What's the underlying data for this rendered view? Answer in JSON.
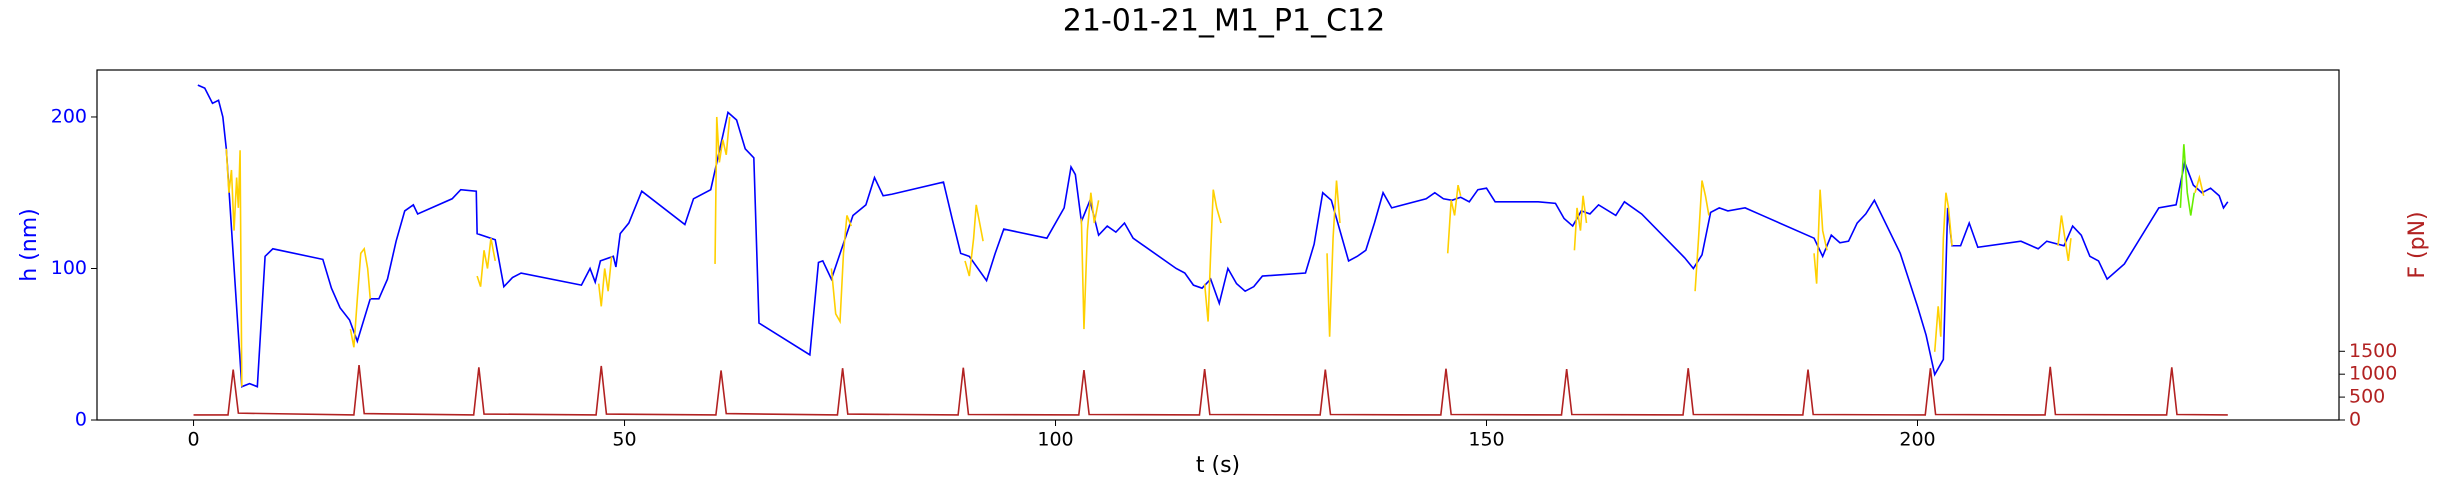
{
  "chart_data": {
    "type": "line",
    "title": "21-01-21_M1_P1_C12",
    "x_label": "t (s)",
    "y_label": "h (nm)",
    "y2_label": "F (pN)",
    "xlim": [
      -11.2,
      248.9
    ],
    "xticks": [
      0,
      50,
      100,
      150,
      200
    ],
    "ylim": [
      0,
      231
    ],
    "yticks": [
      0,
      100,
      200
    ],
    "y2lim": [
      0,
      7640
    ],
    "y2ticks": [
      0,
      500,
      1000,
      1500
    ],
    "series": [
      {
        "color": "#0000ff",
        "axis": "y",
        "x": [
          0.5,
          1.3,
          2.2,
          2.9,
          3.4,
          3.8,
          5.6,
          6.5,
          7.4,
          8.3,
          9.2,
          15,
          16,
          17,
          18.1,
          19,
          20.5,
          21.5,
          22.5,
          23.5,
          24.5,
          25.5,
          26,
          30,
          31,
          32.8,
          32.9,
          35,
          36,
          37,
          38,
          45,
          46,
          46.6,
          47.2,
          48.7,
          49,
          49.5,
          50.5,
          52,
          57,
          58,
          60,
          62,
          63,
          64,
          65,
          65.6,
          71.5,
          72.5,
          73,
          74,
          76.5,
          78,
          79,
          80,
          81,
          87,
          88,
          89,
          90,
          92,
          93,
          94,
          99,
          101,
          101.8,
          102.3,
          103,
          104,
          105,
          106,
          107,
          108,
          109,
          114,
          115,
          116,
          117,
          118,
          119,
          120,
          121,
          122,
          123,
          124,
          129,
          130,
          131,
          132,
          133,
          134,
          135,
          136,
          137,
          138,
          139,
          143,
          144,
          145,
          146,
          147,
          148,
          149,
          150,
          151,
          156,
          158,
          159,
          160,
          161,
          162,
          163,
          165,
          166,
          168,
          173,
          174,
          175,
          176,
          177,
          178,
          180,
          182,
          188,
          189,
          190,
          191,
          192,
          193,
          194,
          195,
          198,
          200,
          201,
          202,
          203,
          203.5,
          204,
          205,
          206,
          207,
          212,
          214,
          215,
          217,
          218,
          219,
          220,
          221,
          222,
          224,
          228,
          230,
          231,
          232,
          233,
          234,
          235,
          235.5,
          236
        ],
        "values": [
          221,
          219,
          209,
          211,
          200,
          179,
          22,
          24,
          22,
          108,
          113,
          106,
          87,
          74,
          66,
          52,
          80,
          80,
          93,
          118,
          138,
          142,
          136,
          146,
          152,
          151,
          123,
          119,
          88,
          94,
          97,
          89,
          100,
          91,
          105,
          108,
          101,
          123,
          130,
          151,
          129,
          146,
          152,
          203,
          198,
          179,
          173,
          64,
          43,
          104,
          105,
          93,
          135,
          142,
          160,
          148,
          149,
          157,
          133,
          110,
          108,
          92,
          110,
          126,
          120,
          140,
          167,
          162,
          131,
          145,
          122,
          128,
          124,
          130,
          120,
          100,
          97,
          89,
          87,
          93,
          77,
          100,
          90,
          85,
          88,
          95,
          97,
          116,
          150,
          145,
          125,
          105,
          108,
          112,
          130,
          150,
          140,
          146,
          150,
          146,
          145,
          147,
          144,
          152,
          153,
          144,
          144,
          143,
          133,
          128,
          138,
          136,
          142,
          135,
          144,
          136,
          107,
          100,
          109,
          137,
          140,
          138,
          140,
          135,
          120,
          108,
          122,
          117,
          118,
          130,
          136,
          145,
          110,
          75,
          56,
          30,
          40,
          140,
          115,
          115,
          130,
          114,
          118,
          113,
          118,
          115,
          128,
          122,
          108,
          105,
          93,
          103,
          140,
          142,
          170,
          155,
          150,
          153,
          148,
          140,
          144
        ]
      },
      {
        "color": "#ffd000",
        "axis": "y",
        "x": [
          3.8,
          4.1,
          4.4,
          4.7,
          5.0,
          5.2,
          5.4,
          5.6,
          6,
          18.2,
          18.6,
          19.0,
          19.4,
          19.8,
          20.2,
          20.5,
          21,
          32.9,
          33.3,
          33.7,
          34.1,
          34.5,
          35,
          36,
          47,
          47.3,
          47.7,
          48.1,
          48.5,
          49,
          60.5,
          60.7,
          61,
          61.4,
          61.8,
          62.2,
          63,
          74,
          74.5,
          75,
          75.4,
          75.8,
          76.3,
          77,
          89.5,
          90,
          90.5,
          90.8,
          91.2,
          91.6,
          92.5,
          103,
          103.3,
          103.7,
          104.1,
          104.5,
          105,
          106,
          117.3,
          117.7,
          118,
          118.3,
          118.7,
          119.2,
          120,
          131.5,
          131.8,
          132.2,
          132.6,
          133,
          134,
          145.5,
          145.9,
          146.3,
          146.7,
          147,
          148,
          160.2,
          160.5,
          160.9,
          161.2,
          161.6,
          162.5,
          174.2,
          174.6,
          175,
          175.4,
          175.8,
          177,
          188,
          188.3,
          188.7,
          189,
          189.5,
          190.5,
          202,
          202.4,
          202.7,
          203,
          203.3,
          203.6,
          204,
          205,
          216.3,
          216.7,
          217.1,
          217.5,
          217.8,
          229,
          232.2,
          232.7,
          233.2
        ],
        "values": [
          179,
          150,
          165,
          125,
          160,
          140,
          178,
          22,
          null,
          60,
          48,
          80,
          110,
          113,
          100,
          80,
          null,
          95,
          88,
          112,
          100,
          120,
          105,
          null,
          90,
          75,
          100,
          85,
          108,
          null,
          103,
          200,
          170,
          185,
          175,
          200,
          null,
          100,
          70,
          65,
          110,
          135,
          128,
          null,
          105,
          95,
          120,
          142,
          130,
          118,
          null,
          133,
          60,
          125,
          150,
          130,
          145,
          null,
          90,
          65,
          110,
          152,
          140,
          130,
          null,
          110,
          55,
          120,
          158,
          130,
          null,
          110,
          145,
          135,
          155,
          148,
          null,
          112,
          140,
          125,
          148,
          130,
          null,
          85,
          120,
          158,
          148,
          135,
          null,
          110,
          90,
          152,
          125,
          112,
          null,
          45,
          75,
          55,
          120,
          150,
          140,
          115,
          null,
          115,
          135,
          120,
          105,
          120,
          null,
          150,
          160,
          148
        ]
      },
      {
        "color": "#66ee00",
        "axis": "y",
        "x": [
          230.5,
          230.9,
          231.3,
          231.7,
          232.1
        ],
        "values": [
          140,
          182,
          150,
          135,
          150
        ]
      },
      {
        "color": "#b22222",
        "axis": "y2",
        "x": [
          0,
          4,
          4.6,
          5.2,
          18.6,
          19.2,
          19.8,
          32.5,
          33.1,
          33.7,
          46.7,
          47.3,
          47.9,
          60.6,
          61.2,
          61.8,
          74.7,
          75.3,
          75.9,
          88.7,
          89.3,
          89.9,
          102.7,
          103.3,
          103.9,
          116.7,
          117.3,
          117.9,
          130.7,
          131.3,
          131.9,
          144.7,
          145.3,
          145.9,
          158.7,
          159.3,
          159.9,
          172.8,
          173.4,
          174,
          186.7,
          187.3,
          187.9,
          200.9,
          201.5,
          202.1,
          214.8,
          215.4,
          216,
          228.9,
          229.5,
          230.1,
          236
        ],
        "values": [
          110,
          110,
          1100,
          150,
          110,
          1200,
          140,
          110,
          1150,
          130,
          110,
          1180,
          130,
          110,
          1080,
          140,
          110,
          1130,
          130,
          110,
          1140,
          120,
          110,
          1090,
          120,
          110,
          1110,
          120,
          110,
          1100,
          120,
          110,
          1120,
          120,
          110,
          1110,
          120,
          110,
          1130,
          120,
          110,
          1100,
          120,
          110,
          1130,
          120,
          110,
          1160,
          120,
          110,
          1150,
          120,
          110
        ]
      }
    ]
  }
}
